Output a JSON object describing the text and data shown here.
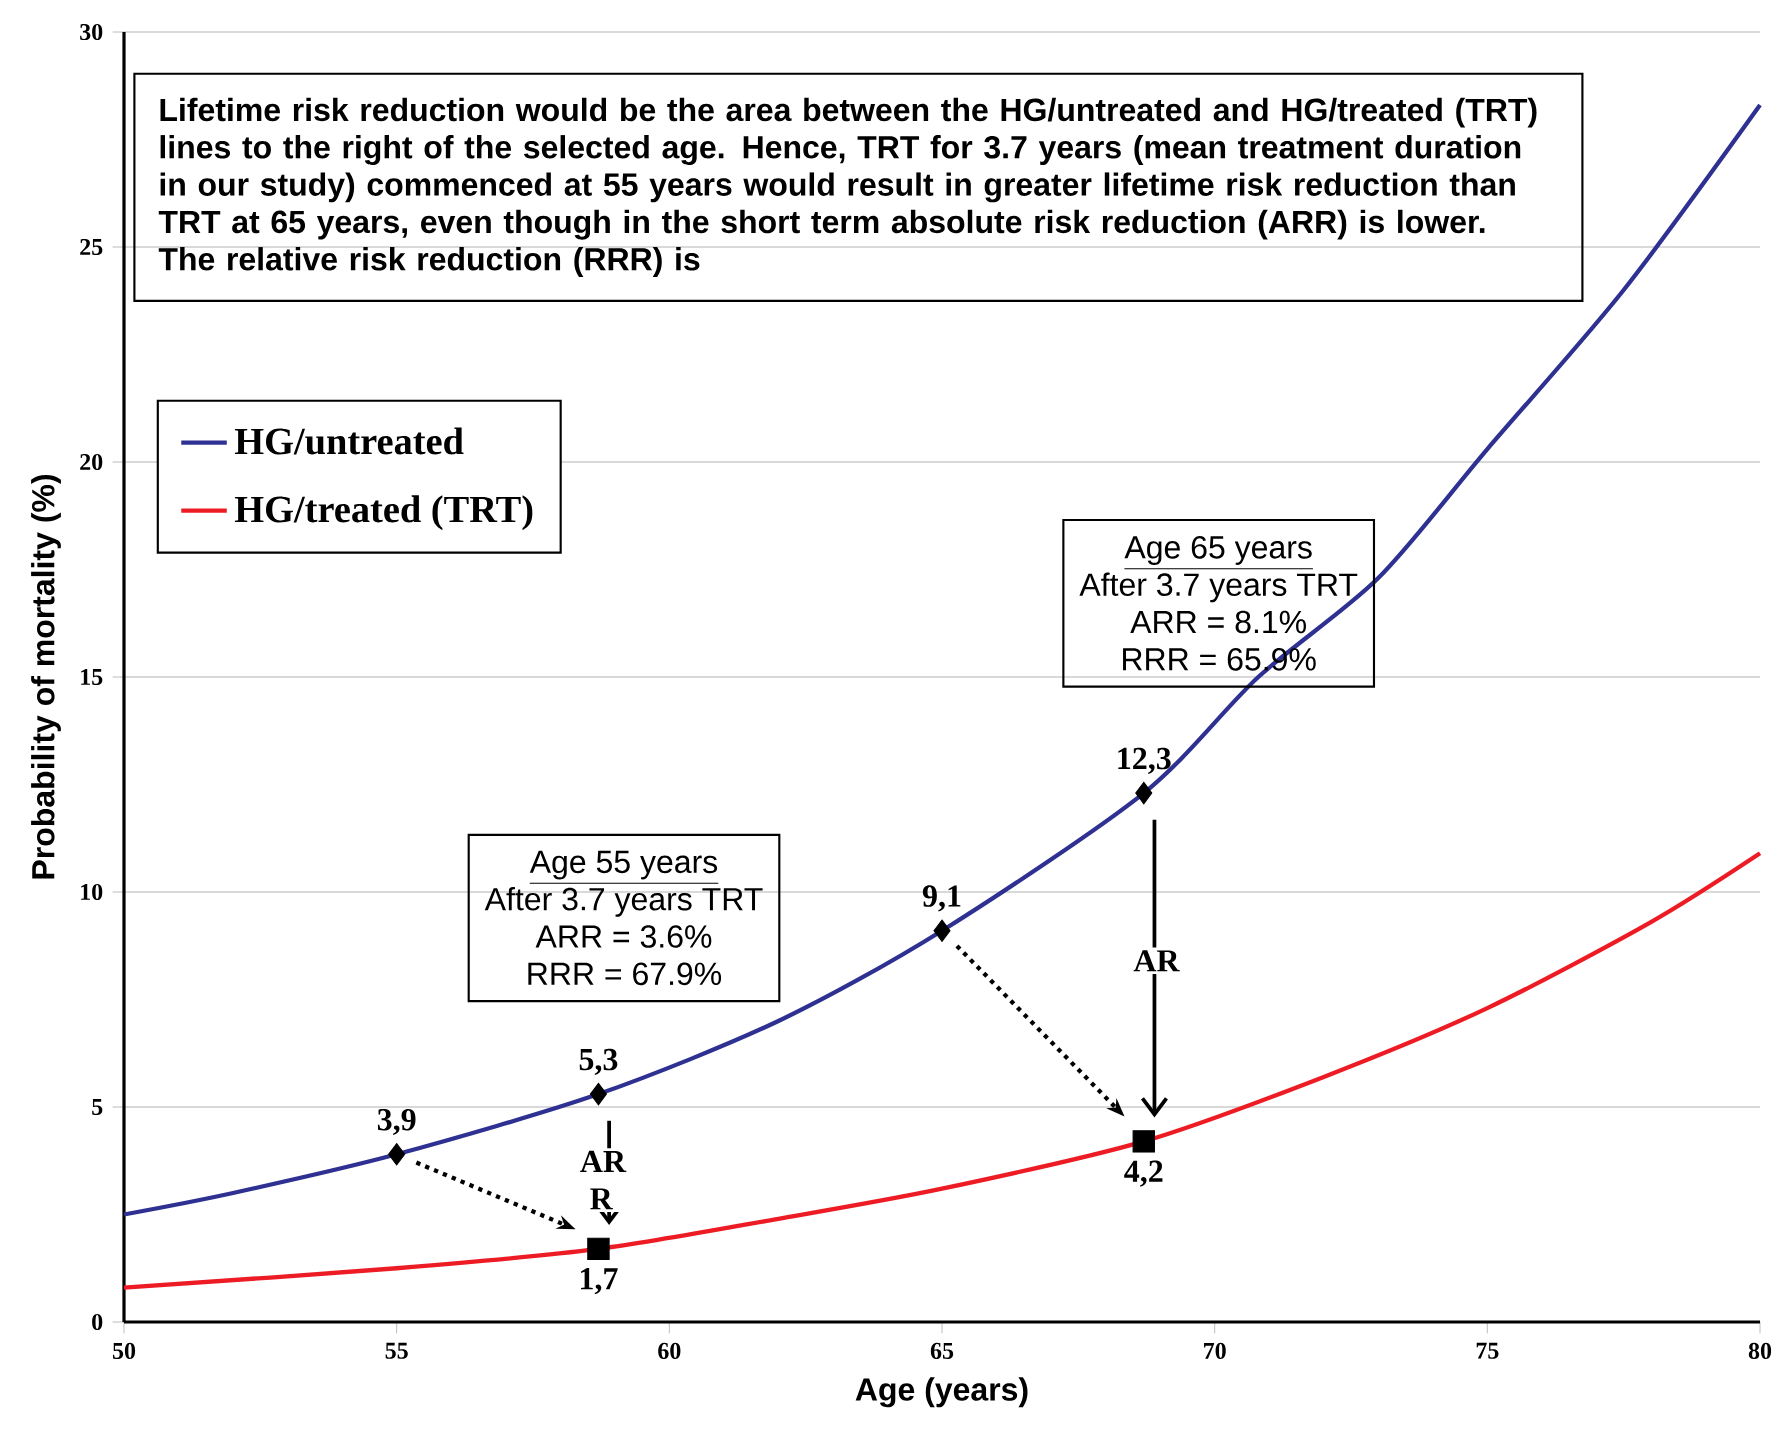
{
  "chart_data": {
    "type": "line",
    "xlabel": "Age (years)",
    "ylabel": "Probability of mortality (%)",
    "xlim": [
      50,
      80
    ],
    "ylim": [
      0,
      30
    ],
    "xticks": [
      50,
      55,
      60,
      65,
      70,
      75,
      80
    ],
    "yticks": [
      0,
      5,
      10,
      15,
      20,
      25,
      30
    ],
    "grid": "y",
    "legend": "left",
    "marker": "none",
    "series": [
      {
        "name": "HG/untreated",
        "color": "#2e3192",
        "x": [
          50,
          52,
          55,
          58.7,
          62,
          65,
          68.7,
          70.8,
          73,
          75,
          77.5,
          80
        ],
        "values": [
          2.5,
          3.0,
          3.9,
          5.3,
          7.0,
          9.1,
          12.3,
          15.0,
          17.3,
          20.3,
          24.0,
          28.3
        ]
      },
      {
        "name": "HG/treated (TRT)",
        "color": "#ed1c24",
        "x": [
          50,
          55,
          58.7,
          62,
          65,
          68.7,
          72,
          75,
          78,
          80
        ],
        "values": [
          0.8,
          1.25,
          1.7,
          2.4,
          3.1,
          4.2,
          5.7,
          7.3,
          9.3,
          10.9
        ]
      },
      {
        "type": "scatter",
        "marker": "diamond",
        "color": "#000000",
        "x": [
          55,
          58.7,
          65,
          68.7
        ],
        "values": [
          3.9,
          5.3,
          9.1,
          12.3
        ],
        "value_labels": [
          "3,9",
          "5,3",
          "9,1",
          "12,3"
        ]
      },
      {
        "type": "scatter",
        "marker": "square",
        "color": "#000000",
        "x": [
          58.7,
          68.7
        ],
        "values": [
          1.7,
          4.2
        ],
        "value_labels": [
          "1,7",
          "4,2"
        ]
      }
    ],
    "annotations": [
      "Lifetime risk reduction would be the area between the HG/untreated and HG/treated (TRT) lines to the right of the selected age. Hence, TRT for 3.7 years (mean treatment duration in our study) commenced at 55 years would result in greater lifetime risk reduction than TRT at 65 years, even though in the short term absolute risk reduction (ARR) is lower. The relative risk reduction (RRR) is",
      "Age 55 years",
      "After 3.7 years TRT",
      "ARR = 3.6%",
      "RRR = 67.9%",
      "Age 65 years",
      "After 3.7 years TRT",
      "ARR = 8.1%",
      "RRR = 65.9%",
      {
        "text": "AR R",
        "x": 58.75,
        "y": 3.3
      },
      {
        "text": "AR",
        "x": 68.9,
        "y": 8.4
      }
    ]
  }
}
